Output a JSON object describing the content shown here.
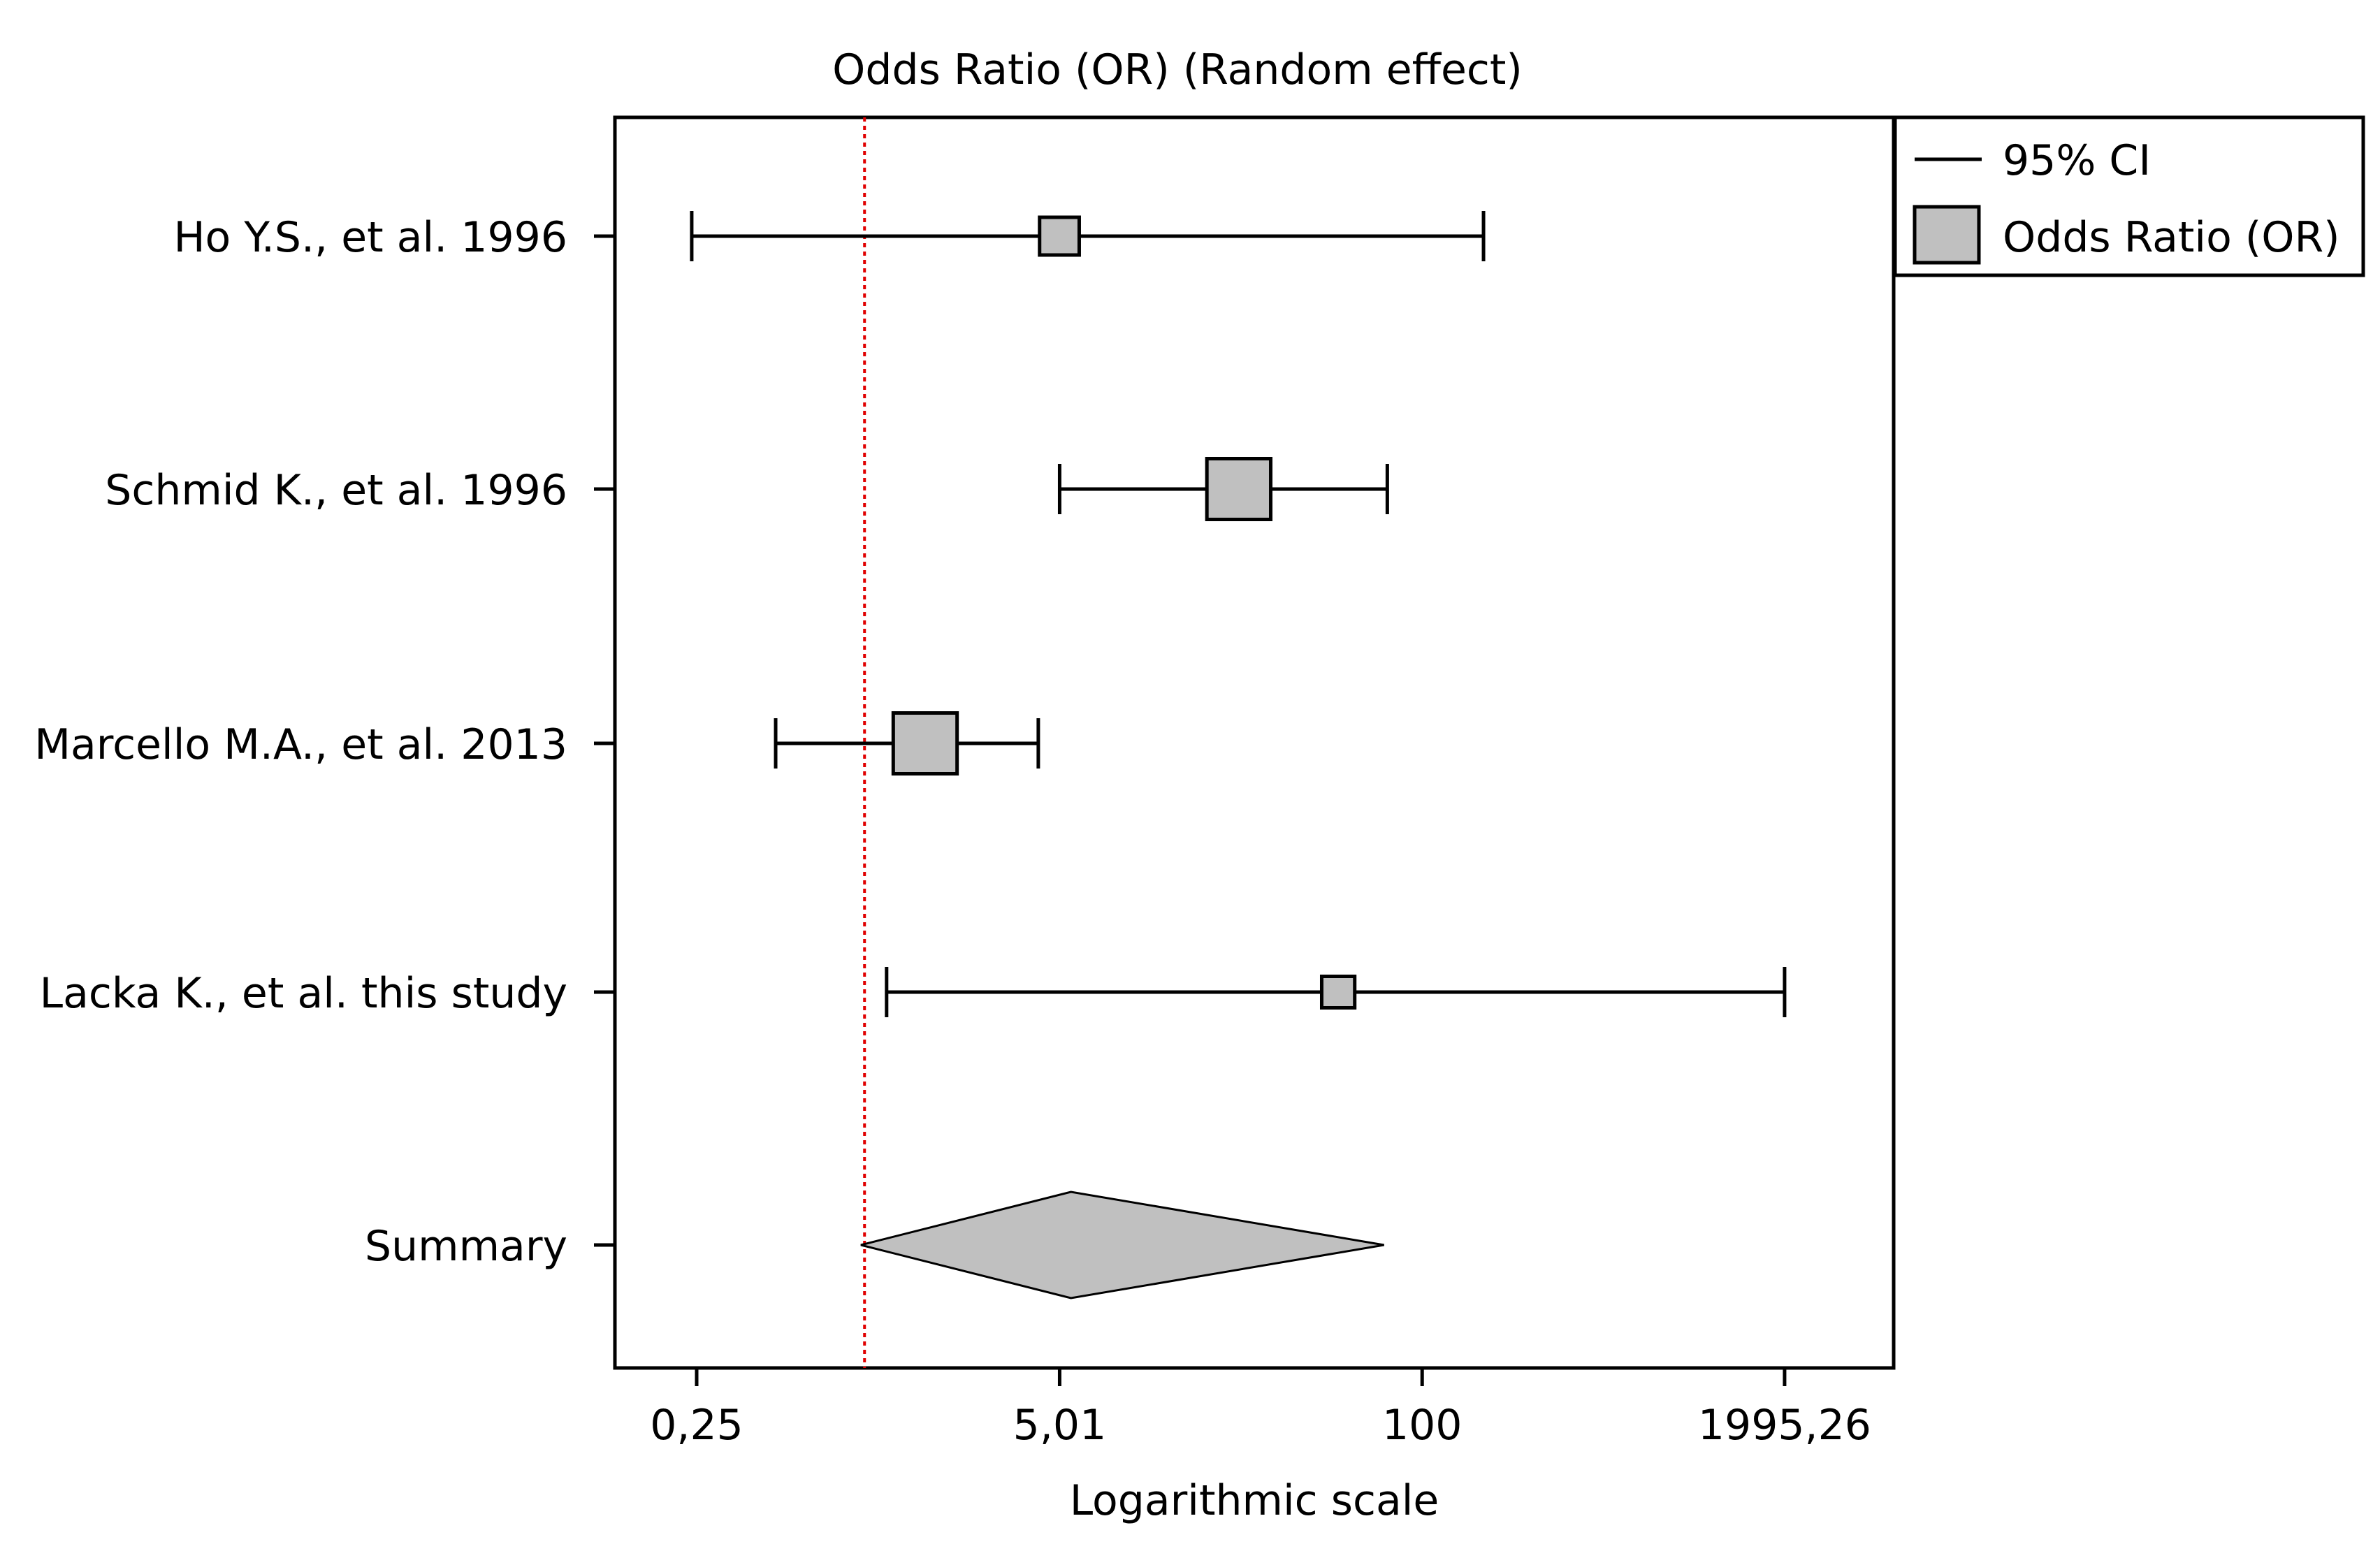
{
  "chart_data": {
    "type": "forest",
    "title": "Odds Ratio (OR) (Random effect)",
    "xlabel": "Logarithmic scale",
    "x_scale": "log",
    "xlim": [
      0.1,
      3600
    ],
    "x_ticks": [
      0.25,
      5.01,
      100,
      1995.26
    ],
    "x_tick_labels": [
      "0,25",
      "5,01",
      "100",
      "1995,26"
    ],
    "null_line": 1,
    "studies": [
      {
        "label": "Ho Y.S., et al. 1996",
        "or": 5.0,
        "ci_low": 0.24,
        "ci_high": 166,
        "weight": 0.9
      },
      {
        "label": "Schmid K., et al. 1996",
        "or": 22,
        "ci_low": 5.01,
        "ci_high": 75,
        "weight": 1.45
      },
      {
        "label": "Marcello M.A., et al. 2013",
        "or": 1.65,
        "ci_low": 0.48,
        "ci_high": 4.2,
        "weight": 1.45
      },
      {
        "label": "Lacka K., et al. this study",
        "or": 50,
        "ci_low": 1.2,
        "ci_high": 1995.26,
        "weight": 0.75
      }
    ],
    "summary": {
      "label": "Summary",
      "or": 5.5,
      "ci_low": 0.97,
      "ci_high": 73
    },
    "legend": {
      "position": "top-right-outside",
      "entries": [
        {
          "label": "95% CI",
          "symbol": "line"
        },
        {
          "label": "Odds Ratio (OR)",
          "symbol": "box"
        }
      ]
    },
    "colors": {
      "box_fill": "#c0c0c0",
      "line": "#000000",
      "null_line": "#e00000"
    }
  }
}
